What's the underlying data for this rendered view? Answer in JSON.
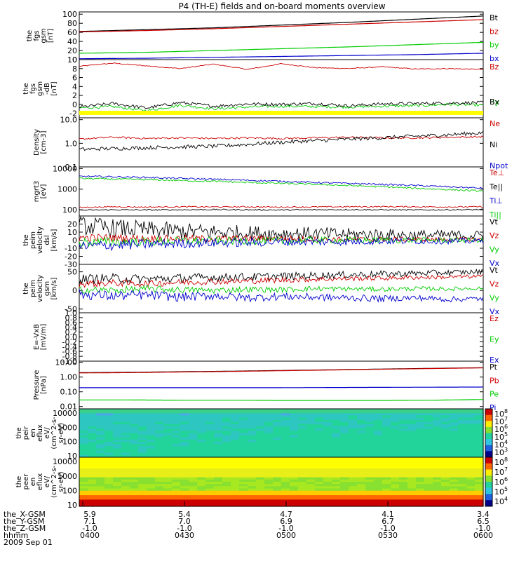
{
  "title": "P4 (TH-E) fields and on-board moments overview",
  "colors": {
    "black": "#000000",
    "red": "#cc0000",
    "green": "#00cc00",
    "blue": "#0000cc",
    "yellow": "#ffff00"
  },
  "chart_data": [
    {
      "type": "line",
      "id": "fgs_gsm",
      "ylabel": [
        "the",
        "fgs",
        "gsm",
        "[nT]"
      ],
      "ylim": [
        0,
        105
      ],
      "yscale": "linear",
      "ticks": [
        "0",
        "20",
        "40",
        "60",
        "80",
        "100"
      ],
      "tick_values": [
        0,
        20,
        40,
        60,
        80,
        100
      ],
      "series": [
        {
          "name": "Bt",
          "color": "black",
          "values": [
            62,
            66,
            70,
            76,
            82,
            89,
            96
          ]
        },
        {
          "name": "bz",
          "color": "red",
          "values": [
            61,
            64,
            68,
            73,
            78,
            83,
            88
          ]
        },
        {
          "name": "by",
          "color": "green",
          "values": [
            14,
            16,
            20,
            24,
            28,
            33,
            38
          ]
        },
        {
          "name": "bx",
          "color": "blue",
          "values": [
            2,
            3,
            5,
            7,
            9,
            11,
            14
          ]
        }
      ]
    },
    {
      "type": "line",
      "id": "fgs_dsl",
      "ylabel": [
        "the",
        "fgs",
        "gsm",
        "-dB",
        "[nT]"
      ],
      "ylim": [
        -3,
        10
      ],
      "yscale": "linear",
      "ticks": [
        "-2",
        "0",
        "2",
        "4",
        "6",
        "8",
        "10"
      ],
      "tick_values": [
        -2,
        0,
        2,
        4,
        6,
        8,
        10
      ],
      "series": [
        {
          "name": "Bz",
          "color": "red",
          "values": [
            8.5,
            9.2,
            8.6,
            8.0,
            9.0,
            7.8,
            9.1,
            8.2,
            8.0,
            8.4,
            7.9,
            8.0,
            7.8
          ]
        },
        {
          "name": "By",
          "color": "green",
          "values": [
            -0.8,
            -0.5,
            -1.4,
            -0.2,
            -1.0,
            -0.6,
            -0.4,
            -0.5,
            -0.6,
            -0.4,
            -0.3,
            0,
            -0.2
          ]
        },
        {
          "name": "Bx",
          "color": "black",
          "values": [
            -0.6,
            0.2,
            -0.8,
            0.4,
            -0.4,
            0.1,
            0,
            0.2,
            -0.3,
            0.1,
            0.2,
            0.3,
            0.4
          ]
        }
      ],
      "flag_bar": "yellow"
    },
    {
      "type": "line",
      "id": "density",
      "ylabel": [
        "Density",
        "[cm-3]"
      ],
      "ylim": [
        0.1,
        12
      ],
      "yscale": "log",
      "ticks": [
        "0.1",
        "1.0",
        "10.0"
      ],
      "tick_values": [
        0.1,
        1,
        10
      ],
      "series": [
        {
          "name": "Ne",
          "color": "red",
          "values": [
            1.5,
            1.8,
            1.6,
            1.7,
            1.6,
            1.7,
            1.6,
            1.7,
            1.8,
            1.7,
            1.7,
            1.8,
            1.9
          ]
        },
        {
          "name": "Ni",
          "color": "black",
          "values": [
            0.55,
            0.6,
            0.65,
            0.7,
            0.75,
            0.9,
            1.1,
            1.3,
            1.5,
            1.7,
            2.0,
            2.3,
            2.8
          ]
        },
        {
          "name": "Npot",
          "color": "blue",
          "values": []
        }
      ]
    },
    {
      "type": "line",
      "id": "temperature",
      "ylabel": [
        "mgrt3",
        "[eV]"
      ],
      "ylim": [
        50,
        12000
      ],
      "yscale": "log",
      "ticks": [
        "100",
        "1000",
        "10000"
      ],
      "tick_values": [
        100,
        1000,
        10000
      ],
      "series": [
        {
          "name": "Te⊥",
          "color": "red",
          "values": [
            130,
            140,
            135,
            140,
            138,
            140,
            135,
            138,
            140,
            142,
            140,
            138,
            140
          ]
        },
        {
          "name": "Te||",
          "color": "black",
          "values": [
            95,
            100,
            98,
            100,
            102,
            100,
            98,
            100,
            102,
            100,
            98,
            100,
            102
          ]
        },
        {
          "name": "Ti⊥",
          "color": "blue",
          "values": [
            4200,
            4000,
            3700,
            3300,
            3000,
            2700,
            2400,
            2100,
            1900,
            1700,
            1500,
            1300,
            1100
          ]
        },
        {
          "name": "Ti||",
          "color": "green",
          "values": [
            3300,
            3100,
            2900,
            2600,
            2400,
            2100,
            1900,
            1700,
            1500,
            1300,
            1100,
            950,
            800
          ]
        }
      ]
    },
    {
      "type": "line",
      "id": "peim_velocity_dsl",
      "ylabel": [
        "the",
        "peim",
        "velocity",
        "dsl",
        "[km/s]"
      ],
      "ylim": [
        -30,
        30
      ],
      "yscale": "linear",
      "ticks": [
        "-30",
        "-20",
        "-10",
        "0",
        "10",
        "20"
      ],
      "tick_values": [
        -30,
        -20,
        -10,
        0,
        10,
        20
      ],
      "series": [
        {
          "name": "Vt",
          "color": "black",
          "values": [
            18,
            15,
            13,
            11,
            10,
            9,
            8,
            8,
            7,
            7,
            6,
            6,
            6
          ]
        },
        {
          "name": "Vz",
          "color": "red",
          "values": [
            3,
            3,
            2,
            2,
            2,
            2,
            2,
            1,
            1,
            1,
            1,
            1,
            1
          ]
        },
        {
          "name": "Vy",
          "color": "green",
          "values": [
            -3,
            -2,
            -2,
            -1,
            -1,
            -1,
            -1,
            0,
            0,
            0,
            0,
            0,
            0
          ]
        },
        {
          "name": "Vx",
          "color": "blue",
          "values": [
            -8,
            -6,
            -5,
            -4,
            -3,
            -3,
            -2,
            -2,
            -2,
            -1,
            -1,
            -1,
            -1
          ]
        }
      ]
    },
    {
      "type": "line",
      "id": "peim_velocity_gsm",
      "ylabel": [
        "the",
        "peim",
        "velocity",
        "gsm",
        "[km/s]"
      ],
      "ylim": [
        -60,
        70
      ],
      "yscale": "linear",
      "ticks": [
        "-50",
        "0",
        "50"
      ],
      "tick_values": [
        -50,
        0,
        50
      ],
      "series": [
        {
          "name": "Vt",
          "color": "black",
          "values": [
            30,
            32,
            30,
            33,
            35,
            36,
            38,
            40,
            42,
            44,
            46,
            48,
            50
          ]
        },
        {
          "name": "Vz",
          "color": "red",
          "values": [
            18,
            20,
            18,
            22,
            24,
            25,
            28,
            30,
            32,
            33,
            35,
            36,
            38
          ]
        },
        {
          "name": "Vy",
          "color": "green",
          "values": [
            2,
            0,
            4,
            2,
            0,
            3,
            2,
            5,
            4,
            3,
            5,
            4,
            6
          ]
        },
        {
          "name": "Vx",
          "color": "blue",
          "values": [
            -10,
            -15,
            -12,
            -18,
            -14,
            -20,
            -16,
            -18,
            -20,
            -22,
            -20,
            -24,
            -22
          ]
        }
      ]
    },
    {
      "type": "line",
      "id": "efield",
      "ylabel": [
        "E=-VxB",
        "[mV/m]"
      ],
      "ylim": [
        -1,
        1
      ],
      "yscale": "linear",
      "ticks": [
        "-1.0",
        "-0.8",
        "-0.6",
        "-0.4",
        "-0.2",
        "0.0",
        "0.2",
        "0.4",
        "0.6",
        "0.8",
        "1.0"
      ],
      "tick_values": [
        -1,
        -0.8,
        -0.6,
        -0.4,
        -0.2,
        0,
        0.2,
        0.4,
        0.6,
        0.8,
        1
      ],
      "series": [
        {
          "name": "Ez",
          "color": "red",
          "values": []
        },
        {
          "name": "Ey",
          "color": "green",
          "values": []
        },
        {
          "name": "Ex",
          "color": "blue",
          "values": []
        }
      ]
    },
    {
      "type": "line",
      "id": "pressure",
      "ylabel": [
        "Pressure",
        "[nPa]"
      ],
      "ylim": [
        0.007,
        12
      ],
      "yscale": "log",
      "ticks": [
        "0.01",
        "0.10",
        "1.00",
        "10.00"
      ],
      "tick_values": [
        0.01,
        0.1,
        1,
        10
      ],
      "series": [
        {
          "name": "Pt",
          "color": "black",
          "values": [
            2.0,
            2.1,
            2.3,
            2.5,
            2.8,
            3.1,
            3.5,
            3.9,
            4.3
          ]
        },
        {
          "name": "Pb",
          "color": "red",
          "values": [
            1.9,
            2.0,
            2.2,
            2.4,
            2.7,
            3.0,
            3.4,
            3.8,
            4.2
          ]
        },
        {
          "name": "Pe",
          "color": "green",
          "values": [
            0.028,
            0.028,
            0.027,
            0.027,
            0.026,
            0.026,
            0.026,
            0.027,
            0.03
          ]
        },
        {
          "name": "Pi",
          "color": "blue",
          "values": [
            0.19,
            0.19,
            0.19,
            0.19,
            0.19,
            0.195,
            0.2,
            0.205,
            0.21
          ]
        }
      ]
    },
    {
      "type": "heatmap",
      "id": "peir_spectrogram",
      "ylabel": [
        "the",
        "peir",
        "en",
        "eflux",
        "eV/",
        "(cm^2-s-",
        "sr-eV)"
      ],
      "ylim": [
        8,
        20000
      ],
      "yscale": "log",
      "ticks": [
        "10",
        "100",
        "1000",
        "10000"
      ],
      "tick_values": [
        10,
        100,
        1000,
        10000
      ]
    },
    {
      "type": "heatmap",
      "id": "peer_spectrogram",
      "ylabel": [
        "the",
        "peer",
        "en",
        "eflux",
        "eV/",
        "(cm^2-s-",
        "sr-eV)"
      ],
      "ylim": [
        8,
        20000
      ],
      "yscale": "log",
      "ticks": [
        "10",
        "100",
        "1000",
        "10000"
      ],
      "tick_values": [
        10,
        100,
        1000,
        10000
      ]
    }
  ],
  "colorbars": [
    {
      "ticks": [
        "10",
        "10",
        "10",
        "10",
        "10",
        "10"
      ],
      "exps": [
        "8",
        "7",
        "6",
        "5",
        "4",
        "3"
      ]
    },
    {
      "ticks": [
        "10",
        "10",
        "10",
        "10",
        "10"
      ],
      "exps": [
        "8",
        "7",
        "6",
        "5",
        "4"
      ]
    }
  ],
  "xaxis": {
    "tick_times": [
      "0400",
      "0430",
      "0500",
      "0530",
      "0600"
    ],
    "rows": [
      {
        "label": "the_X-GSM",
        "values": [
          "5.9",
          "5.4",
          "4.7",
          "4.1",
          "3.4"
        ]
      },
      {
        "label": "the_Y-GSM",
        "values": [
          "7.1",
          "7.0",
          "6.9",
          "6.7",
          "6.5"
        ]
      },
      {
        "label": "the_Z-GSM",
        "values": [
          "-1.0",
          "-1.0",
          "-1.0",
          "-1.0",
          "-1.0"
        ]
      },
      {
        "label": "hhmm",
        "values": [
          "0400",
          "0430",
          "0500",
          "0530",
          "0600"
        ]
      }
    ],
    "date": "2009 Sep 01"
  }
}
